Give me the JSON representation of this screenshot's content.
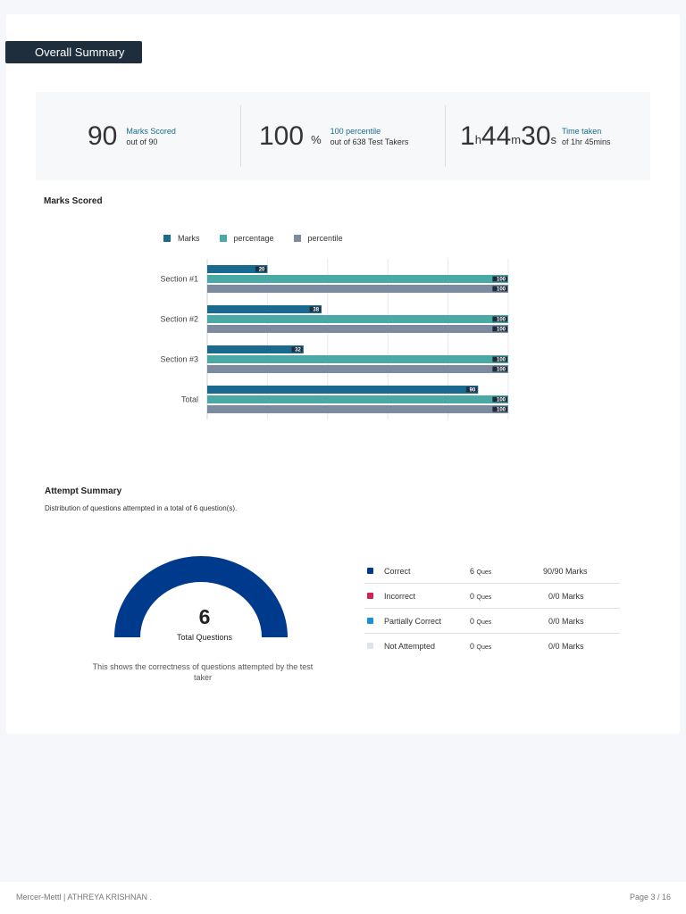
{
  "header": {
    "title": "Overall Summary"
  },
  "stats": {
    "marks": {
      "value": "90",
      "label": "Marks Scored",
      "sub": "out of 90"
    },
    "percentile": {
      "value": "100",
      "unit": "%",
      "label": "100 percentile",
      "sub": "out of 638 Test Takers"
    },
    "time": {
      "h": "1",
      "h_unit": "h",
      "m": "44",
      "m_unit": "m",
      "s": "30",
      "s_unit": "s",
      "label": "Time taken",
      "sub": "of 1hr 45mins"
    }
  },
  "marks_section": {
    "title": "Marks Scored"
  },
  "chart_data": {
    "type": "bar",
    "orientation": "horizontal",
    "categories": [
      "Section #1",
      "Section #2",
      "Section #3",
      "Total"
    ],
    "series": [
      {
        "name": "Marks",
        "values": [
          20,
          38,
          32,
          90
        ],
        "color": "#1a6a8f"
      },
      {
        "name": "percentage",
        "values": [
          100,
          100,
          100,
          100
        ],
        "color": "#4aa9a4"
      },
      {
        "name": "percentile",
        "values": [
          100,
          100,
          100,
          100
        ],
        "color": "#7d8ba1"
      }
    ],
    "xlim": [
      0,
      100
    ],
    "grid": true,
    "legend": "top"
  },
  "attempt": {
    "title": "Attempt Summary",
    "subtitle": "Distribution of questions attempted in a total of 6 question(s).",
    "total": "6",
    "total_label": "Total Questions",
    "caption": "This shows the correctness of questions attempted by the test taker",
    "rows": [
      {
        "name": "Correct",
        "count": "6",
        "unit": "Ques",
        "marks": "90/90 Marks",
        "color": "#003a8c"
      },
      {
        "name": "Incorrect",
        "count": "0",
        "unit": "Ques",
        "marks": "0/0 Marks",
        "color": "#d6204f"
      },
      {
        "name": "Partially Correct",
        "count": "0",
        "unit": "Ques",
        "marks": "0/0 Marks",
        "color": "#1f8fd6"
      },
      {
        "name": "Not Attempted",
        "count": "0",
        "unit": "Ques",
        "marks": "0/0 Marks",
        "color": "#dde4ee"
      }
    ]
  },
  "footer": {
    "left": "Mercer-Mettl | ATHREYA KRISHNAN .",
    "right": "Page 3 / 16"
  }
}
